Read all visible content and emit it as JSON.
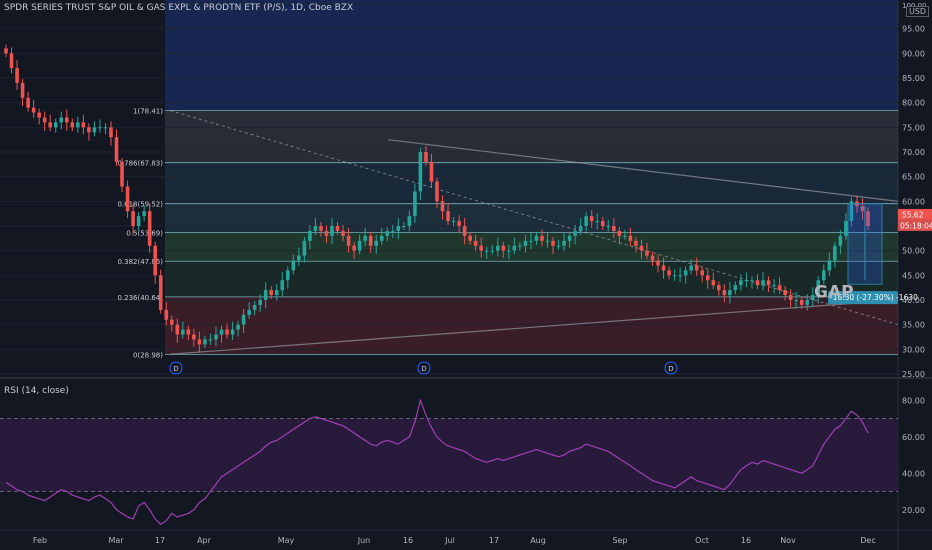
{
  "header": {
    "title": "SPDR SERIES TRUST S&P OIL & GAS EXPL & PRODTN ETF (P/S), 1D, Cboe BZX",
    "currency": "USD"
  },
  "rsi": {
    "label": "RSI (14, close)"
  },
  "colors": {
    "background": "#131722",
    "up": "#26a69a",
    "down": "#ef5350",
    "rsi_line": "#a03fb3",
    "rsi_band": "#2a1b3d",
    "fib_line": "#8fd3e0",
    "measure": "#2e8fb1",
    "grid": "#1f2330"
  },
  "chart_data": [
    {
      "type": "candlestick",
      "title": "SPDR SERIES TRUST S&P OIL & GAS EXPL & PRODTN ETF (P/S), 1D, Cboe BZX",
      "ylim": [
        25,
        100
      ],
      "y_ticks": [
        "25.00",
        "30.00",
        "35.00",
        "40.00",
        "45.00",
        "50.00",
        "55.00",
        "60.00",
        "65.00",
        "70.00",
        "75.00",
        "80.00",
        "85.00",
        "90.00",
        "95.00",
        "100.00"
      ],
      "x_ticks": [
        "Feb",
        "Mar",
        "17",
        "Apr",
        "May",
        "Jun",
        "16",
        "Jul",
        "17",
        "Aug",
        "Sep",
        "Oct",
        "16",
        "Nov",
        "Dec"
      ],
      "close_series": [
        90,
        87,
        84,
        81,
        79,
        78,
        77,
        76,
        75,
        76,
        77,
        76,
        75,
        76,
        75,
        74,
        75,
        75,
        75,
        73,
        68,
        63,
        58,
        55,
        57,
        58,
        51,
        45,
        38,
        36,
        35,
        33,
        34,
        33,
        32,
        31,
        32,
        32,
        33,
        34,
        33,
        34,
        35,
        37,
        38,
        39,
        40,
        42,
        41,
        42,
        44,
        46,
        48,
        49,
        52,
        54,
        55,
        54,
        53,
        55,
        54,
        53,
        51,
        50,
        52,
        53,
        51,
        52,
        53,
        54,
        54,
        55,
        55,
        57,
        62,
        70,
        68,
        64,
        60,
        58,
        56,
        56,
        55,
        53,
        52,
        51,
        50,
        50,
        50,
        51,
        50,
        50,
        51,
        51,
        52,
        52,
        53,
        52,
        52,
        51,
        51,
        52,
        53,
        54,
        55,
        57,
        56,
        56,
        55,
        55,
        54,
        53,
        53,
        52,
        51,
        50,
        49,
        48,
        47,
        46,
        45,
        45,
        45,
        46,
        47,
        46,
        45,
        44,
        43,
        42,
        41,
        42,
        43,
        44,
        44,
        44,
        43,
        44,
        43,
        43,
        42,
        41,
        40,
        40,
        39,
        40,
        41,
        44,
        46,
        48,
        51,
        53,
        56,
        60,
        59,
        58,
        55
      ],
      "current_price": "55.62",
      "countdown": "05:18:04",
      "fib_levels": [
        {
          "ratio": "1",
          "price": 78.41,
          "label": "1(78.41)"
        },
        {
          "ratio": "0.786",
          "price": 67.83,
          "label": "0.786(67.83)"
        },
        {
          "ratio": "0.618",
          "price": 59.52,
          "label": "0.618(59.52)"
        },
        {
          "ratio": "0.5",
          "price": 53.69,
          "label": "0.5(53.69)"
        },
        {
          "ratio": "0.382",
          "price": 47.86,
          "label": "0.382(47.86)"
        },
        {
          "ratio": "0.236",
          "price": 40.64,
          "label": "0.236(40.64)"
        },
        {
          "ratio": "0",
          "price": 28.98,
          "label": "0(28.98)"
        }
      ],
      "measure_label": "-16.30 (-27.30%) -1630",
      "annotation": "GAP",
      "dividend_marker": "D"
    },
    {
      "type": "line",
      "title": "RSI (14, close)",
      "ylim": [
        10,
        90
      ],
      "y_ticks": [
        "20.00",
        "40.00",
        "60.00",
        "80.00"
      ],
      "bands": [
        30,
        70
      ],
      "values": [
        35,
        33,
        31,
        30,
        28,
        27,
        26,
        25,
        27,
        29,
        31,
        30,
        28,
        27,
        26,
        25,
        27,
        28,
        26,
        24,
        20,
        18,
        16,
        15,
        22,
        24,
        20,
        15,
        12,
        14,
        18,
        16,
        17,
        18,
        20,
        24,
        26,
        30,
        34,
        38,
        40,
        42,
        44,
        46,
        48,
        50,
        52,
        55,
        57,
        58,
        60,
        62,
        64,
        66,
        68,
        70,
        71,
        70,
        69,
        68,
        67,
        66,
        64,
        62,
        60,
        58,
        56,
        55,
        57,
        58,
        57,
        56,
        58,
        60,
        68,
        80,
        72,
        65,
        60,
        57,
        55,
        54,
        53,
        52,
        50,
        48,
        47,
        46,
        47,
        48,
        47,
        48,
        49,
        50,
        51,
        52,
        53,
        52,
        51,
        50,
        49,
        50,
        52,
        53,
        54,
        56,
        55,
        54,
        53,
        52,
        50,
        48,
        46,
        44,
        42,
        40,
        38,
        36,
        35,
        34,
        33,
        32,
        34,
        36,
        38,
        36,
        35,
        34,
        33,
        32,
        31,
        34,
        38,
        42,
        44,
        46,
        45,
        47,
        46,
        45,
        44,
        43,
        42,
        41,
        40,
        42,
        44,
        50,
        56,
        60,
        64,
        66,
        70,
        74,
        72,
        68,
        62
      ]
    }
  ]
}
